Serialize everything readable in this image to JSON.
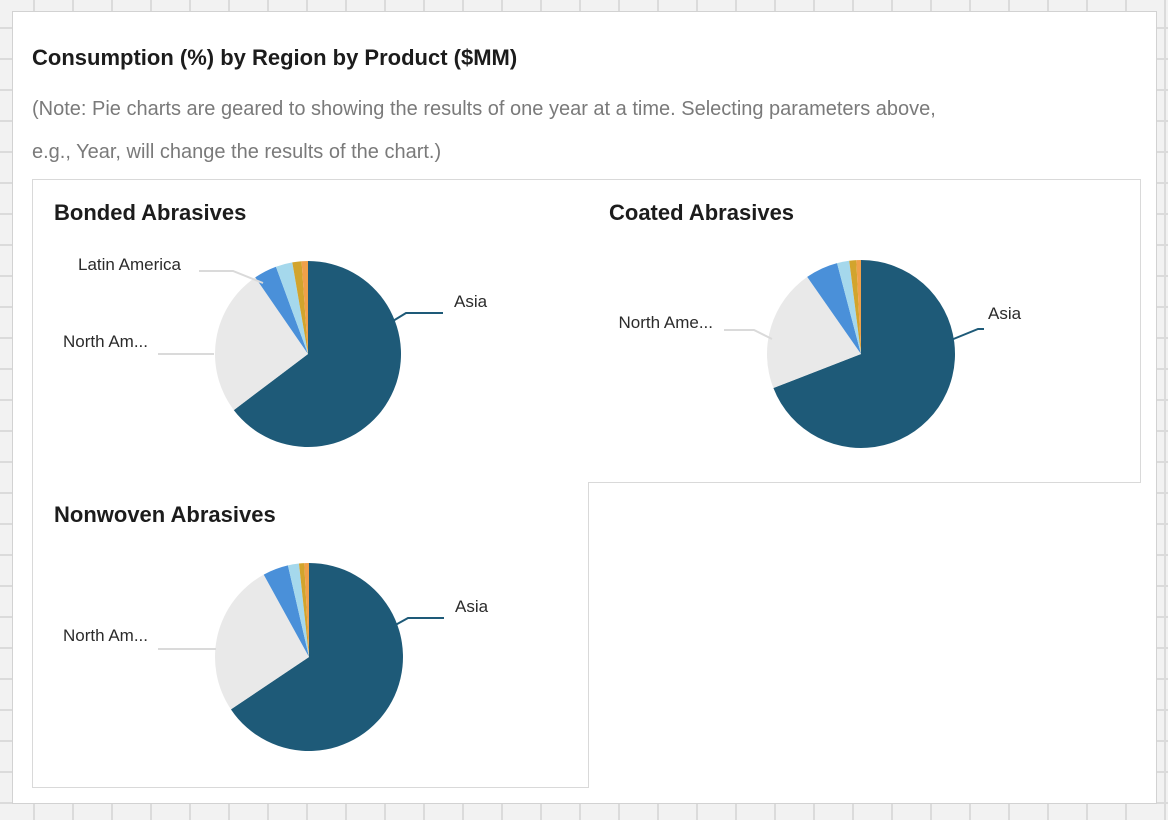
{
  "page": {
    "title": "Consumption (%) by Region by Product ($MM)",
    "note_lines": [
      "(Note: Pie charts are geared to showing the results of one year at a time. Selecting parameters above,",
      "e.g., Year, will change the results of the chart.)"
    ]
  },
  "colors": {
    "asia_slice": "#1e5a78",
    "north_america_slice": "#e9e9e9",
    "latin_america_slice": "#4a90d9",
    "slice_4": "#a5d8ec",
    "slice_5": "#d2a42d",
    "slice_6": "#f0a04a",
    "leader_gray": "#dadada",
    "leader_teal": "#1e5a78",
    "cell_border": "#d9d9d9",
    "note_text": "#7a7a7a",
    "title_text": "#1c1c1c"
  },
  "chart_data": [
    {
      "type": "pie",
      "title": "Bonded Abrasives",
      "unit": "percent of consumption",
      "legend": "none",
      "start_angle_deg": 0,
      "direction": "clockwise",
      "slices": [
        {
          "label": "Asia",
          "pct": 64.7,
          "color": "#1e5a78"
        },
        {
          "label": "North America",
          "pct": 25.7,
          "color": "#e9e9e9"
        },
        {
          "label": "Latin America",
          "pct": 4.0,
          "color": "#4a90d9"
        },
        {
          "label": "",
          "pct": 2.9,
          "color": "#a5d8ec"
        },
        {
          "label": "",
          "pct": 1.6,
          "color": "#d2a42d"
        },
        {
          "label": "",
          "pct": 1.1,
          "color": "#f0a04a"
        }
      ],
      "callouts": [
        {
          "text": "Latin America"
        },
        {
          "text": "North Am..."
        },
        {
          "text": "Asia"
        }
      ]
    },
    {
      "type": "pie",
      "title": "Coated Abrasives",
      "unit": "percent of consumption",
      "legend": "none",
      "start_angle_deg": 0,
      "direction": "clockwise",
      "slices": [
        {
          "label": "Asia",
          "pct": 69.1,
          "color": "#1e5a78"
        },
        {
          "label": "North America",
          "pct": 21.2,
          "color": "#e9e9e9"
        },
        {
          "label": "",
          "pct": 5.6,
          "color": "#4a90d9"
        },
        {
          "label": "",
          "pct": 2.1,
          "color": "#a5d8ec"
        },
        {
          "label": "",
          "pct": 1.2,
          "color": "#d2a42d"
        },
        {
          "label": "",
          "pct": 0.8,
          "color": "#f0a04a"
        }
      ],
      "callouts": [
        {
          "text": "North Ame..."
        },
        {
          "text": "Asia"
        }
      ]
    },
    {
      "type": "pie",
      "title": "Nonwoven Abrasives",
      "unit": "percent of consumption",
      "legend": "none",
      "start_angle_deg": 0,
      "direction": "clockwise",
      "slices": [
        {
          "label": "Asia",
          "pct": 65.6,
          "color": "#1e5a78"
        },
        {
          "label": "North America",
          "pct": 26.4,
          "color": "#e9e9e9"
        },
        {
          "label": "",
          "pct": 4.4,
          "color": "#4a90d9"
        },
        {
          "label": "",
          "pct": 1.9,
          "color": "#a5d8ec"
        },
        {
          "label": "",
          "pct": 0.9,
          "color": "#d2a42d"
        },
        {
          "label": "",
          "pct": 0.8,
          "color": "#f0a04a"
        }
      ],
      "callouts": [
        {
          "text": "North Am..."
        },
        {
          "text": "Asia"
        }
      ]
    }
  ]
}
